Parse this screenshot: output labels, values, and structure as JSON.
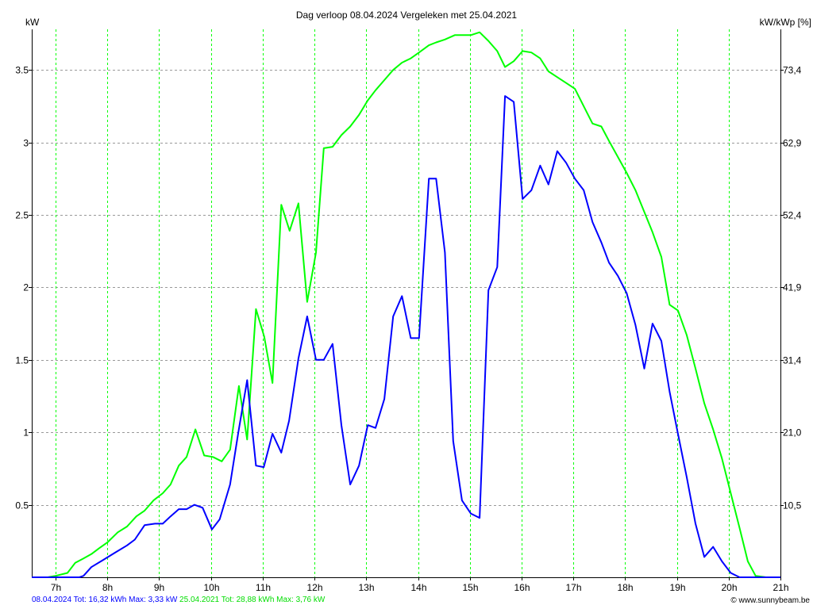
{
  "chart_data": {
    "type": "line",
    "title": "Dag  verloop 08.04.2024   Vergeleken met 25.04.2021",
    "ylabel": "kW",
    "ylabel_right": "kW/kWp [%]",
    "xlim": [
      6.54,
      21
    ],
    "ylim": [
      0,
      3.78
    ],
    "x_ticks": [
      7,
      8,
      9,
      10,
      11,
      12,
      13,
      14,
      15,
      16,
      17,
      18,
      19,
      20,
      21
    ],
    "x_tick_labels": [
      "7h",
      "8h",
      "9h",
      "10h",
      "11h",
      "12h",
      "13h",
      "14h",
      "15h",
      "16h",
      "17h",
      "18h",
      "19h",
      "20h",
      "21h"
    ],
    "y_ticks": [
      0.5,
      1,
      1.5,
      2,
      2.5,
      3,
      3.5
    ],
    "y_tick_labels": [
      "0.5",
      "1",
      "1.5",
      "2",
      "2.5",
      "3",
      "3.5"
    ],
    "y_right_tick_labels": [
      "10,5",
      "21,0",
      "31,4",
      "41,9",
      "52,4",
      "62,9",
      "73,4"
    ],
    "grid": true,
    "series": [
      {
        "name": "08.04.2024",
        "color": "#0000ff",
        "summary": "08.04.2024 Tot: 16,32 kWh Max: 3,33 kW",
        "x": [
          6.54,
          7.46,
          7.54,
          7.69,
          7.92,
          8.15,
          8.38,
          8.53,
          8.72,
          8.92,
          9.07,
          9.22,
          9.38,
          9.53,
          9.68,
          9.84,
          10.02,
          10.17,
          10.37,
          10.53,
          10.7,
          10.87,
          11.02,
          11.19,
          11.36,
          11.51,
          11.69,
          11.86,
          12.03,
          12.18,
          12.35,
          12.52,
          12.69,
          12.86,
          13.03,
          13.18,
          13.35,
          13.52,
          13.69,
          13.86,
          14.02,
          14.21,
          14.35,
          14.52,
          14.68,
          14.85,
          15.02,
          15.19,
          15.36,
          15.53,
          15.68,
          15.85,
          16.02,
          16.19,
          16.36,
          16.52,
          16.69,
          16.86,
          17.03,
          17.2,
          17.37,
          17.54,
          17.69,
          17.86,
          18.03,
          18.2,
          18.37,
          18.53,
          18.7,
          18.86,
          19.02,
          19.19,
          19.36,
          19.53,
          19.7,
          19.87,
          20.04,
          20.21,
          21.0
        ],
        "y": [
          0,
          0,
          0.01,
          0.07,
          0.12,
          0.17,
          0.22,
          0.26,
          0.36,
          0.37,
          0.37,
          0.42,
          0.47,
          0.47,
          0.5,
          0.48,
          0.33,
          0.4,
          0.64,
          1.0,
          1.36,
          0.77,
          0.76,
          0.99,
          0.86,
          1.08,
          1.51,
          1.8,
          1.5,
          1.5,
          1.61,
          1.05,
          0.64,
          0.77,
          1.05,
          1.03,
          1.23,
          1.8,
          1.94,
          1.65,
          1.65,
          2.75,
          2.75,
          2.24,
          0.94,
          0.53,
          0.44,
          0.41,
          1.98,
          2.14,
          3.32,
          3.28,
          2.61,
          2.67,
          2.84,
          2.71,
          2.94,
          2.86,
          2.75,
          2.67,
          2.45,
          2.31,
          2.17,
          2.08,
          1.96,
          1.74,
          1.44,
          1.75,
          1.63,
          1.28,
          0.99,
          0.69,
          0.37,
          0.14,
          0.21,
          0.11,
          0.03,
          0,
          0
        ]
      },
      {
        "name": "25.04.2021",
        "color": "#00ff00",
        "summary": "25.04.2021 Tot: 28,88 kWh Max: 3,76 kW",
        "x": [
          6.54,
          6.85,
          7.0,
          7.23,
          7.38,
          7.54,
          7.69,
          7.84,
          8.0,
          8.2,
          8.38,
          8.56,
          8.72,
          8.89,
          9.07,
          9.22,
          9.38,
          9.53,
          9.7,
          9.87,
          10.04,
          10.21,
          10.37,
          10.54,
          10.7,
          10.87,
          11.03,
          11.19,
          11.36,
          11.52,
          11.69,
          11.86,
          12.03,
          12.18,
          12.35,
          12.52,
          12.69,
          12.86,
          13.03,
          13.18,
          13.35,
          13.52,
          13.69,
          13.86,
          14.02,
          14.21,
          14.35,
          14.52,
          14.71,
          14.85,
          15.02,
          15.19,
          15.36,
          15.53,
          15.68,
          15.85,
          16.02,
          16.19,
          16.36,
          16.52,
          16.69,
          16.86,
          17.03,
          17.2,
          17.37,
          17.54,
          17.69,
          17.86,
          18.03,
          18.2,
          18.37,
          18.53,
          18.7,
          18.86,
          19.02,
          19.19,
          19.36,
          19.53,
          19.7,
          19.87,
          20.04,
          20.21,
          20.37,
          20.52,
          20.72,
          21.0
        ],
        "y": [
          0,
          0,
          0.01,
          0.03,
          0.1,
          0.13,
          0.16,
          0.2,
          0.24,
          0.31,
          0.35,
          0.42,
          0.46,
          0.53,
          0.58,
          0.64,
          0.77,
          0.83,
          1.02,
          0.84,
          0.83,
          0.8,
          0.88,
          1.32,
          0.95,
          1.85,
          1.66,
          1.34,
          2.57,
          2.39,
          2.58,
          1.9,
          2.24,
          2.96,
          2.97,
          3.05,
          3.11,
          3.19,
          3.29,
          3.36,
          3.43,
          3.5,
          3.55,
          3.58,
          3.62,
          3.67,
          3.69,
          3.71,
          3.74,
          3.74,
          3.74,
          3.76,
          3.7,
          3.63,
          3.52,
          3.56,
          3.63,
          3.62,
          3.58,
          3.49,
          3.45,
          3.41,
          3.37,
          3.25,
          3.13,
          3.11,
          3.01,
          2.9,
          2.79,
          2.67,
          2.52,
          2.38,
          2.21,
          1.88,
          1.84,
          1.67,
          1.44,
          1.2,
          1.02,
          0.82,
          0.58,
          0.34,
          0.11,
          0.01,
          0,
          0
        ]
      }
    ],
    "legend": "bottom-left"
  },
  "credit": "© www.sunnybeam.be"
}
